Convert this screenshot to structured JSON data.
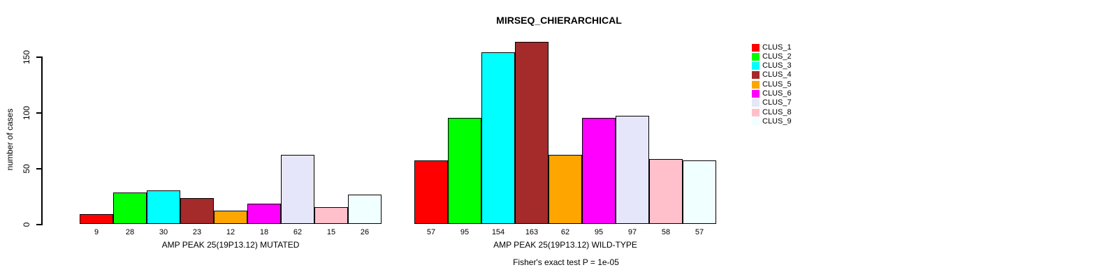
{
  "chart_data": {
    "type": "bar",
    "title": "MIRSEQ_CHIERARCHICAL",
    "ylabel": "number of cases",
    "yticks": [
      0,
      50,
      100,
      150
    ],
    "ylim": [
      0,
      150
    ],
    "grid": false,
    "legend_position": "right",
    "clusters": [
      "CLUS_1",
      "CLUS_2",
      "CLUS_3",
      "CLUS_4",
      "CLUS_5",
      "CLUS_6",
      "CLUS_7",
      "CLUS_8",
      "CLUS_9"
    ],
    "cluster_colors": [
      "#FF0000",
      "#00FF00",
      "#00FFFF",
      "#A52A2A",
      "#FFA500",
      "#FF00FF",
      "#E6E6FA",
      "#FFC0CB",
      "#F0FFFF"
    ],
    "groups": [
      {
        "label": "AMP PEAK 25(19P13.12) MUTATED",
        "values": [
          9,
          28,
          30,
          23,
          12,
          18,
          62,
          15,
          26
        ]
      },
      {
        "label": "AMP PEAK 25(19P13.12) WILD-TYPE",
        "values": [
          57,
          95,
          154,
          163,
          62,
          95,
          97,
          58,
          57
        ]
      }
    ],
    "bar_value_labels": true,
    "footnote": "Fisher's exact test P = 1e-05"
  }
}
